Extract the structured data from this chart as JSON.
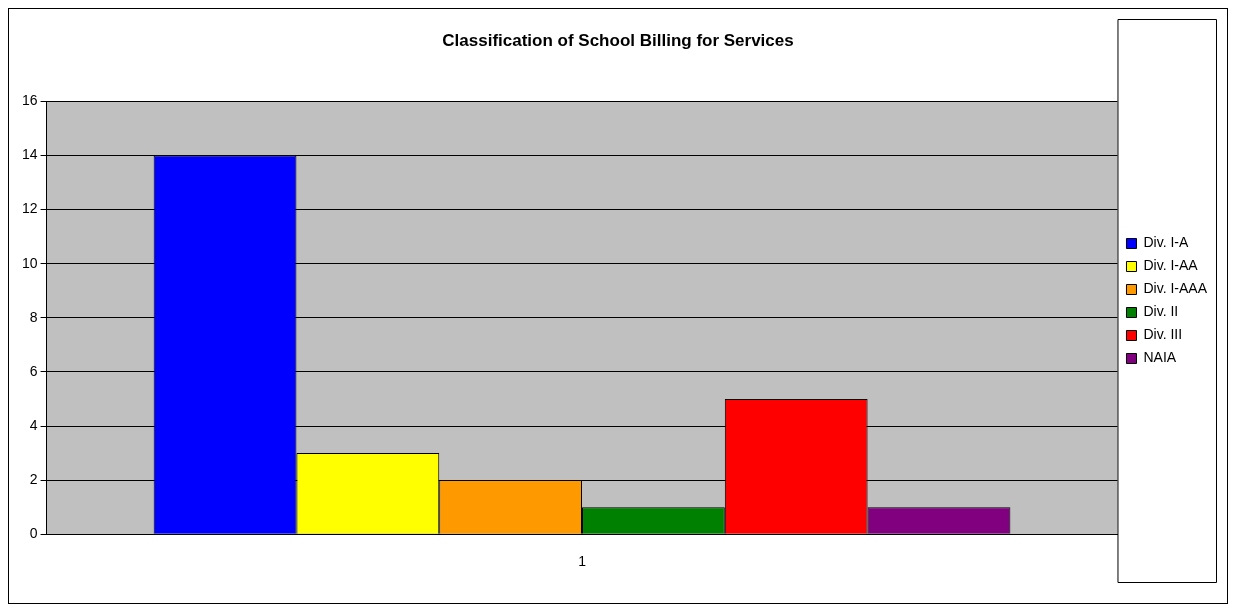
{
  "chart_data": {
    "type": "bar",
    "title": "Classification of School Billing for Services",
    "categories": [
      "1"
    ],
    "series": [
      {
        "name": "Div. I-A",
        "color": "#0000ff",
        "values": [
          14
        ]
      },
      {
        "name": "Div. I-AA",
        "color": "#ffff00",
        "values": [
          3
        ]
      },
      {
        "name": "Div. I-AAA",
        "color": "#ff9900",
        "values": [
          2
        ]
      },
      {
        "name": "Div. II",
        "color": "#008000",
        "values": [
          1
        ]
      },
      {
        "name": "Div. III",
        "color": "#ff0000",
        "values": [
          5
        ]
      },
      {
        "name": "NAIA",
        "color": "#800080",
        "values": [
          1
        ]
      }
    ],
    "ylim": [
      0,
      16
    ],
    "yticks": [
      0,
      2,
      4,
      6,
      8,
      10,
      12,
      14,
      16
    ],
    "grid": "y",
    "legend": "right"
  }
}
